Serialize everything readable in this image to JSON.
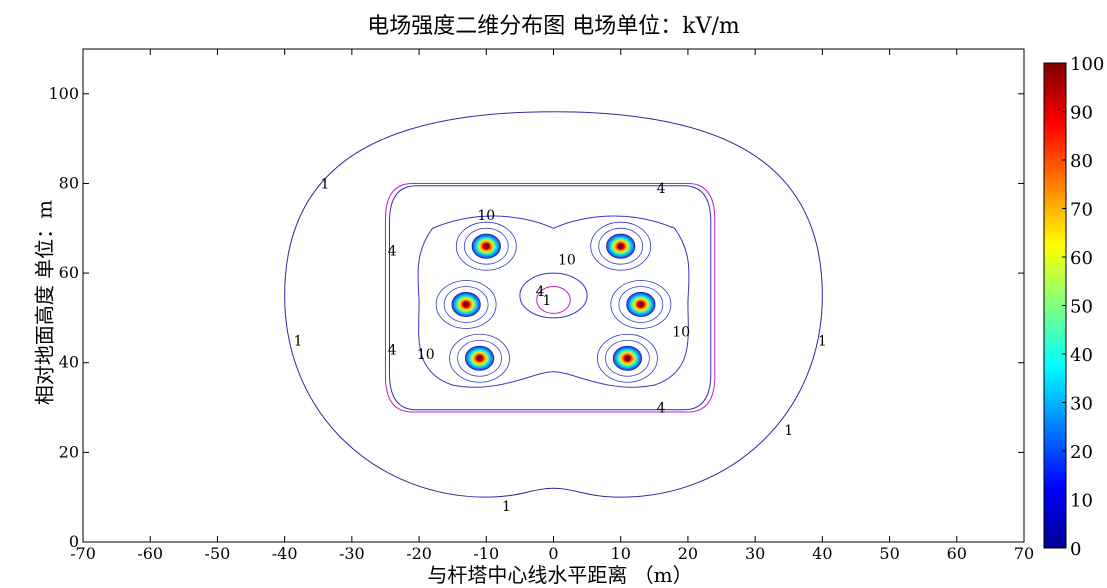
{
  "chart_data": {
    "type": "contour",
    "title": "电场强度二维分布图 电场单位：kV/m",
    "xlabel": "与杆塔中心线水平距离 （m）",
    "ylabel": "相对地面高度 单位：m",
    "xlim": [
      -70,
      70
    ],
    "ylim": [
      0,
      110
    ],
    "x_ticks": [
      -70,
      -60,
      -50,
      -40,
      -30,
      -20,
      -10,
      0,
      10,
      20,
      30,
      40,
      50,
      60,
      70
    ],
    "y_ticks": [
      0,
      20,
      40,
      60,
      80,
      100
    ],
    "colorbar": {
      "min": 0,
      "max": 100,
      "ticks": [
        0,
        10,
        20,
        30,
        40,
        50,
        60,
        70,
        80,
        90,
        100
      ]
    },
    "contour_labels": [
      "1",
      "4",
      "10"
    ],
    "conductors": [
      {
        "x": -10,
        "y": 66
      },
      {
        "x": -13,
        "y": 53
      },
      {
        "x": -11,
        "y": 41
      },
      {
        "x": 10,
        "y": 66
      },
      {
        "x": 13,
        "y": 53
      },
      {
        "x": 11,
        "y": 41
      }
    ],
    "contour_1": {
      "level": 1,
      "x": [
        -40,
        40
      ],
      "y": [
        10,
        96
      ]
    },
    "contour_4": {
      "level": 4,
      "x": [
        -25,
        24
      ],
      "y": [
        29,
        80
      ]
    }
  }
}
